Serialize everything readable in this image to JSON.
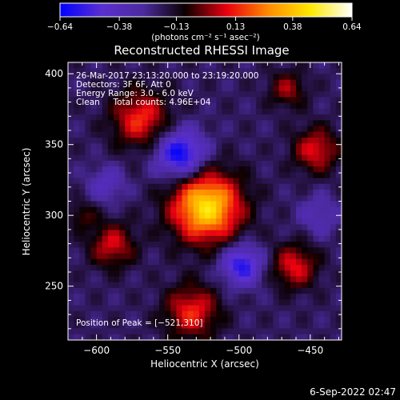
{
  "chart_data": {
    "type": "heatmap",
    "title": "Reconstructed RHESSI Image",
    "xlabel": "Heliocentric X (arcsec)",
    "ylabel": "Heliocentric Y (arcsec)",
    "xlim": [
      -620,
      -428
    ],
    "ylim": [
      212,
      408
    ],
    "x_ticks": [
      -600,
      -550,
      -500,
      -450
    ],
    "y_ticks": [
      250,
      300,
      350,
      400
    ],
    "x_tick_labels": [
      "−600",
      "−550",
      "−500",
      "−450"
    ],
    "y_tick_labels": [
      "250",
      "300",
      "350",
      "400"
    ],
    "colorbar": {
      "min": -0.64,
      "max": 0.64,
      "ticks": [
        -0.64,
        -0.38,
        -0.13,
        0.13,
        0.38,
        0.64
      ],
      "tick_labels": [
        "−0.64",
        "−0.38",
        "−0.13",
        "0.13",
        "0.38",
        "0.64"
      ],
      "units": "(photons cm⁻² s⁻¹ asec⁻²)",
      "colors": [
        "#0000ff",
        "#5a2fd0",
        "#4b2a9e",
        "#0a0000",
        "#e8000f",
        "#ff8c00",
        "#ffe800",
        "#ffffff"
      ]
    },
    "sources": [
      {
        "x": -523,
        "y": 306,
        "sigma": 17,
        "amp": 0.64
      },
      {
        "x": -569,
        "y": 368,
        "sigma": 14,
        "amp": 0.34
      },
      {
        "x": -589,
        "y": 279,
        "sigma": 11,
        "amp": 0.28
      },
      {
        "x": -533,
        "y": 232,
        "sigma": 13,
        "amp": 0.33
      },
      {
        "x": -446,
        "y": 346,
        "sigma": 11,
        "amp": 0.3
      },
      {
        "x": -461,
        "y": 264,
        "sigma": 11,
        "amp": 0.3
      },
      {
        "x": -466,
        "y": 389,
        "sigma": 9,
        "amp": 0.22
      },
      {
        "x": -610,
        "y": 300,
        "sigma": 7,
        "amp": 0.15
      },
      {
        "x": -541,
        "y": 343,
        "sigma": 12,
        "amp": -0.45
      },
      {
        "x": -498,
        "y": 265,
        "sigma": 10,
        "amp": -0.38
      },
      {
        "x": -593,
        "y": 322,
        "sigma": 9,
        "amp": -0.18
      },
      {
        "x": -444,
        "y": 300,
        "sigma": 10,
        "amp": -0.15
      }
    ],
    "background": -0.2,
    "annotations": [
      "26-Mar-2017 23:13:20.000 to 23:19:20.000",
      "Detectors: 3F 6F, Att 0",
      "Energy Range: 3.0 - 6.0 keV",
      "Clean     Total counts: 4.96E+04"
    ],
    "peak_label": "Position of Peak = [−521,310]"
  },
  "footer": {
    "date": "6-Sep-2022 02:47"
  }
}
